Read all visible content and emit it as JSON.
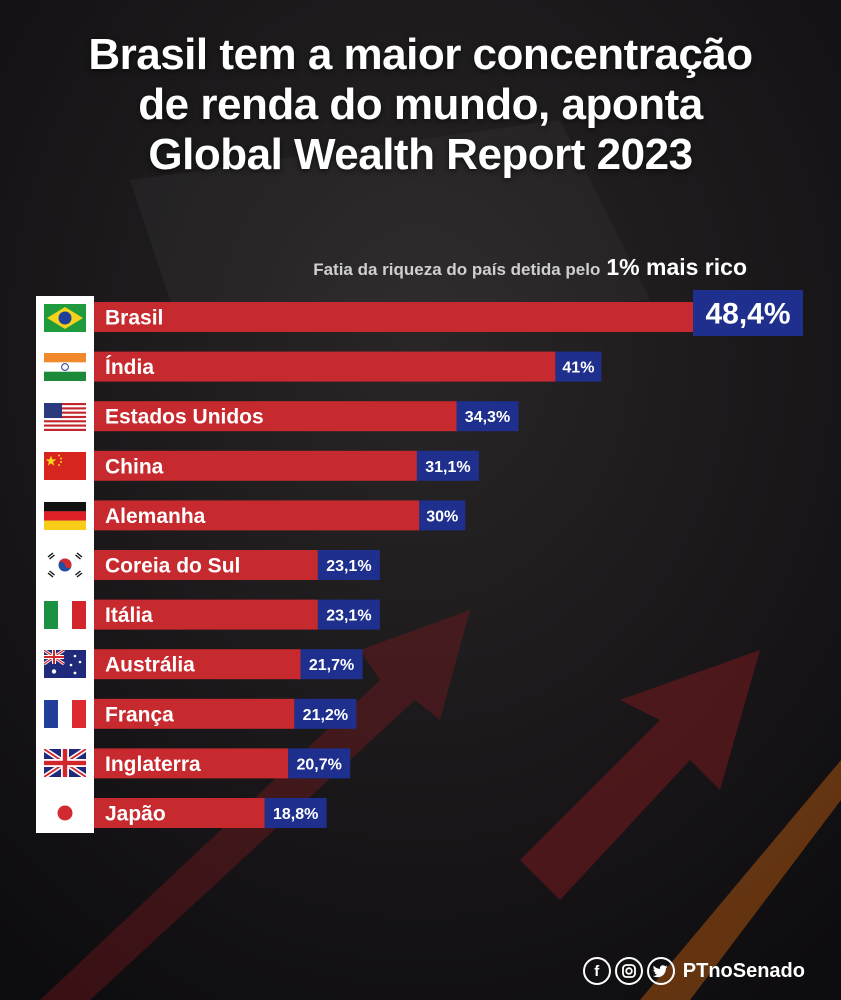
{
  "title": {
    "line1": "Brasil tem a maior concentração",
    "line2": "de renda do mundo, aponta",
    "line3": "Global Wealth Report 2023"
  },
  "subtitle": {
    "prefix": "Fatia da riqueza do país detida pelo",
    "emphasis": "1% mais rico"
  },
  "colors": {
    "bar": "#c62a2f",
    "value_box": "#1e2f8e",
    "background": "#131214"
  },
  "chart_data": {
    "type": "bar",
    "orientation": "horizontal",
    "categories": [
      "Brasil",
      "Índia",
      "Estados Unidos",
      "China",
      "Alemanha",
      "Coreia do Sul",
      "Itália",
      "Austrália",
      "França",
      "Inglaterra",
      "Japão"
    ],
    "values": [
      48.4,
      41,
      34.3,
      31.1,
      30,
      23.1,
      23.1,
      21.7,
      21.2,
      20.7,
      18.8
    ],
    "value_labels": [
      "48,4%",
      "41%",
      "34,3%",
      "31,1%",
      "30%",
      "23,1%",
      "23,1%",
      "21,7%",
      "21,2%",
      "20,7%",
      "18,8%"
    ],
    "flags": [
      "brazil-flag-icon",
      "india-flag-icon",
      "usa-flag-icon",
      "china-flag-icon",
      "germany-flag-icon",
      "south-korea-flag-icon",
      "italy-flag-icon",
      "australia-flag-icon",
      "france-flag-icon",
      "uk-flag-icon",
      "japan-flag-icon"
    ],
    "unit": "%",
    "legend": "none",
    "grid": false
  },
  "footer": {
    "icons": [
      "facebook-icon",
      "instagram-icon",
      "twitter-icon"
    ],
    "handle": "PTnoSenado"
  }
}
